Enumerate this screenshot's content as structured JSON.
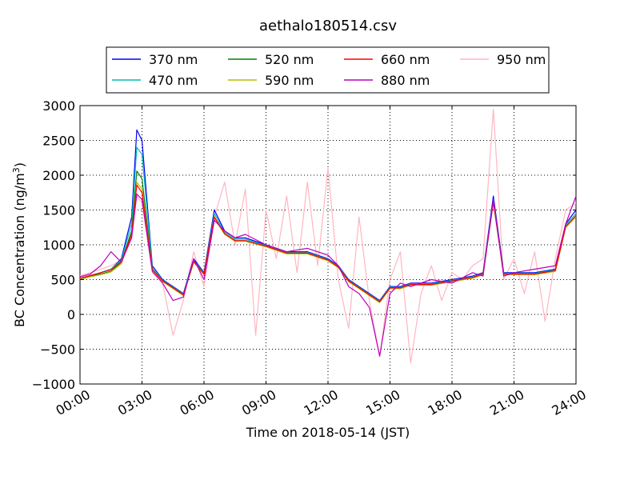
{
  "chart_data": {
    "type": "line",
    "title": "aethalo180514.csv",
    "xlabel": "Time on 2018-05-14 (JST)",
    "ylabel": "BC Concentration (ng/m³)",
    "ylabel_main": "BC Concentration (ng/m",
    "ylabel_sup": "3",
    "ylabel_end": ")",
    "xlim": [
      "00:00",
      "24:00"
    ],
    "ylim": [
      -1000,
      3000
    ],
    "x_ticks": [
      "00:00",
      "03:00",
      "06:00",
      "09:00",
      "12:00",
      "15:00",
      "18:00",
      "21:00",
      "24:00"
    ],
    "y_ticks": [
      "−1000",
      "−500",
      "0",
      "500",
      "1000",
      "1500",
      "2000",
      "2500",
      "3000"
    ],
    "grid": true,
    "legend_position": "top",
    "series": [
      {
        "name": "370 nm",
        "color": "#0000ff",
        "x": [
          "00:00",
          "00:30",
          "01:00",
          "01:30",
          "02:00",
          "02:30",
          "02:45",
          "03:00",
          "03:30",
          "04:00",
          "04:30",
          "05:00",
          "05:30",
          "06:00",
          "06:30",
          "07:00",
          "07:30",
          "08:00",
          "09:00",
          "10:00",
          "11:00",
          "12:00",
          "12:30",
          "13:00",
          "13:30",
          "14:00",
          "14:30",
          "15:00",
          "15:30",
          "16:00",
          "17:00",
          "18:00",
          "19:00",
          "19:30",
          "20:00",
          "20:30",
          "21:00",
          "22:00",
          "23:00",
          "23:30",
          "24:00"
        ],
        "values": [
          500,
          550,
          600,
          650,
          800,
          1400,
          2650,
          2500,
          700,
          500,
          400,
          300,
          800,
          600,
          1500,
          1200,
          1100,
          1100,
          1000,
          900,
          900,
          800,
          700,
          500,
          400,
          300,
          200,
          400,
          400,
          450,
          450,
          500,
          550,
          600,
          1700,
          600,
          600,
          600,
          650,
          1300,
          1500
        ]
      },
      {
        "name": "470 nm",
        "color": "#00bbbb",
        "x": [
          "00:00",
          "00:30",
          "01:00",
          "01:30",
          "02:00",
          "02:30",
          "02:45",
          "03:00",
          "03:30",
          "04:00",
          "04:30",
          "05:00",
          "05:30",
          "06:00",
          "06:30",
          "07:00",
          "07:30",
          "08:00",
          "09:00",
          "10:00",
          "11:00",
          "12:00",
          "12:30",
          "13:00",
          "13:30",
          "14:00",
          "14:30",
          "15:00",
          "15:30",
          "16:00",
          "17:00",
          "18:00",
          "19:00",
          "19:30",
          "20:00",
          "20:30",
          "21:00",
          "22:00",
          "23:00",
          "23:30",
          "24:00"
        ],
        "values": [
          500,
          550,
          600,
          650,
          780,
          1300,
          2400,
          2300,
          680,
          490,
          390,
          290,
          780,
          590,
          1450,
          1180,
          1080,
          1080,
          990,
          890,
          890,
          790,
          690,
          490,
          390,
          290,
          190,
          390,
          390,
          440,
          440,
          490,
          540,
          590,
          1650,
          590,
          590,
          590,
          640,
          1280,
          1450
        ]
      },
      {
        "name": "520 nm",
        "color": "#008000",
        "x": [
          "00:00",
          "00:30",
          "01:00",
          "01:30",
          "02:00",
          "02:30",
          "02:45",
          "03:00",
          "03:30",
          "04:00",
          "04:30",
          "05:00",
          "05:30",
          "06:00",
          "06:30",
          "07:00",
          "07:30",
          "08:00",
          "09:00",
          "10:00",
          "11:00",
          "12:00",
          "12:30",
          "13:00",
          "13:30",
          "14:00",
          "14:30",
          "15:00",
          "15:30",
          "16:00",
          "17:00",
          "18:00",
          "19:00",
          "19:30",
          "20:00",
          "20:30",
          "21:00",
          "22:00",
          "23:00",
          "23:30",
          "24:00"
        ],
        "values": [
          500,
          550,
          580,
          620,
          750,
          1200,
          2060,
          1950,
          650,
          480,
          380,
          280,
          760,
          580,
          1400,
          1160,
          1060,
          1060,
          980,
          880,
          880,
          780,
          680,
          480,
          380,
          280,
          180,
          380,
          380,
          430,
          430,
          480,
          530,
          580,
          1620,
          580,
          580,
          580,
          630,
          1260,
          1420
        ]
      },
      {
        "name": "590 nm",
        "color": "#bbbb00",
        "x": [
          "00:00",
          "00:30",
          "01:00",
          "01:30",
          "02:00",
          "02:30",
          "02:45",
          "03:00",
          "03:30",
          "04:00",
          "04:30",
          "05:00",
          "05:30",
          "06:00",
          "06:30",
          "07:00",
          "07:30",
          "08:00",
          "09:00",
          "10:00",
          "11:00",
          "12:00",
          "12:30",
          "13:00",
          "13:30",
          "14:00",
          "14:30",
          "15:00",
          "15:30",
          "16:00",
          "17:00",
          "18:00",
          "19:00",
          "19:30",
          "20:00",
          "20:30",
          "21:00",
          "22:00",
          "23:00",
          "23:30",
          "24:00"
        ],
        "values": [
          500,
          540,
          570,
          610,
          730,
          1150,
          1900,
          1800,
          640,
          470,
          370,
          270,
          750,
          570,
          1380,
          1150,
          1050,
          1050,
          970,
          870,
          870,
          770,
          670,
          470,
          370,
          270,
          170,
          370,
          370,
          420,
          420,
          470,
          520,
          570,
          1600,
          570,
          570,
          570,
          620,
          1250,
          1400
        ]
      },
      {
        "name": "660 nm",
        "color": "#ff0000",
        "x": [
          "00:00",
          "00:30",
          "01:00",
          "01:30",
          "02:00",
          "02:30",
          "02:45",
          "03:00",
          "03:30",
          "04:00",
          "04:30",
          "05:00",
          "05:30",
          "06:00",
          "06:30",
          "07:00",
          "07:30",
          "08:00",
          "09:00",
          "10:00",
          "11:00",
          "12:00",
          "12:30",
          "13:00",
          "13:30",
          "14:00",
          "14:30",
          "15:00",
          "15:30",
          "16:00",
          "17:00",
          "18:00",
          "19:00",
          "19:30",
          "20:00",
          "20:30",
          "21:00",
          "22:00",
          "23:00",
          "23:30",
          "24:00"
        ],
        "values": [
          520,
          560,
          600,
          640,
          760,
          1150,
          1860,
          1750,
          650,
          480,
          380,
          280,
          760,
          580,
          1400,
          1160,
          1060,
          1060,
          980,
          880,
          880,
          780,
          680,
          480,
          380,
          280,
          180,
          380,
          380,
          430,
          430,
          480,
          530,
          580,
          1620,
          580,
          580,
          580,
          630,
          1260,
          1420
        ]
      },
      {
        "name": "880 nm",
        "color": "#bb00bb",
        "x": [
          "00:00",
          "00:30",
          "01:00",
          "01:30",
          "02:00",
          "02:30",
          "02:45",
          "03:00",
          "03:30",
          "04:00",
          "04:30",
          "05:00",
          "05:30",
          "06:00",
          "06:30",
          "07:00",
          "07:30",
          "08:00",
          "09:00",
          "10:00",
          "11:00",
          "12:00",
          "12:30",
          "13:00",
          "13:30",
          "14:00",
          "14:30",
          "15:00",
          "15:30",
          "16:00",
          "17:00",
          "18:00",
          "19:00",
          "19:30",
          "20:00",
          "20:30",
          "21:00",
          "22:00",
          "23:00",
          "23:30",
          "24:00"
        ],
        "values": [
          540,
          580,
          700,
          900,
          750,
          1100,
          1730,
          1650,
          620,
          450,
          200,
          250,
          800,
          500,
          1350,
          1200,
          1100,
          1150,
          1000,
          900,
          950,
          850,
          700,
          400,
          300,
          100,
          -600,
          300,
          450,
          400,
          500,
          450,
          600,
          550,
          1650,
          550,
          600,
          650,
          700,
          1300,
          1700
        ]
      },
      {
        "name": "950 nm",
        "color": "#ffb6c1",
        "x": [
          "00:00",
          "00:30",
          "01:00",
          "01:30",
          "02:00",
          "02:30",
          "02:45",
          "03:00",
          "03:30",
          "04:00",
          "04:30",
          "05:00",
          "05:30",
          "06:00",
          "06:30",
          "07:00",
          "07:30",
          "08:00",
          "08:30",
          "09:00",
          "09:30",
          "10:00",
          "10:30",
          "11:00",
          "11:30",
          "12:00",
          "12:30",
          "13:00",
          "13:30",
          "14:00",
          "14:30",
          "15:00",
          "15:30",
          "16:00",
          "16:30",
          "17:00",
          "17:30",
          "18:00",
          "18:30",
          "19:00",
          "19:30",
          "20:00",
          "20:30",
          "21:00",
          "21:30",
          "22:00",
          "22:30",
          "23:00",
          "23:30",
          "24:00"
        ],
        "values": [
          560,
          600,
          650,
          700,
          780,
          1150,
          1700,
          1600,
          600,
          450,
          -300,
          200,
          900,
          400,
          1400,
          1900,
          1000,
          1800,
          -300,
          1500,
          800,
          1700,
          600,
          1900,
          700,
          2100,
          500,
          -200,
          1400,
          200,
          -600,
          500,
          900,
          -700,
          300,
          700,
          200,
          600,
          500,
          700,
          800,
          2950,
          500,
          800,
          300,
          900,
          -100,
          800,
          1500,
          1600
        ]
      }
    ]
  }
}
